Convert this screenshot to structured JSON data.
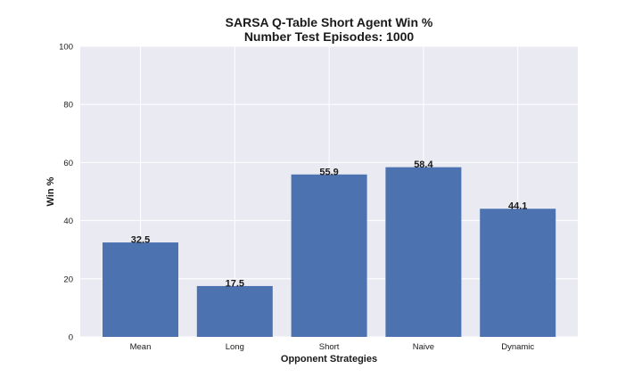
{
  "chart_data": {
    "type": "bar",
    "title": "SARSA Q-Table Short Agent Win %",
    "subtitle": "Number Test Episodes: 1000",
    "xlabel": "Opponent Strategies",
    "ylabel": "Win %",
    "categories": [
      "Mean",
      "Long",
      "Short",
      "Naive",
      "Dynamic"
    ],
    "values": [
      32.5,
      17.5,
      55.9,
      58.4,
      44.1
    ],
    "value_labels": [
      "32.5",
      "17.5",
      "55.9",
      "58.4",
      "44.1"
    ],
    "ylim": [
      0,
      100
    ],
    "yticks": [
      0,
      20,
      40,
      60,
      80,
      100
    ],
    "ytick_labels": [
      "0",
      "20",
      "40",
      "60",
      "80",
      "100"
    ],
    "grid": true,
    "colors": {
      "bar": "#4c72b0",
      "plot_background": "#eaeaf2",
      "grid": "#ffffff"
    }
  }
}
